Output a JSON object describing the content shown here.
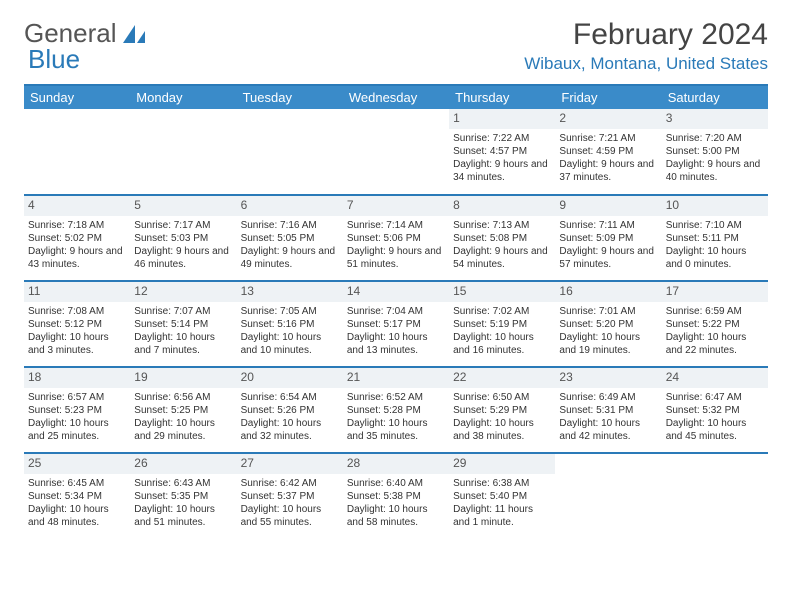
{
  "brand": {
    "part1": "General",
    "part2": "Blue"
  },
  "title": "February 2024",
  "location": "Wibaux, Montana, United States",
  "columns": [
    "Sunday",
    "Monday",
    "Tuesday",
    "Wednesday",
    "Thursday",
    "Friday",
    "Saturday"
  ],
  "colors": {
    "header_bg": "#3a8bc9",
    "accent": "#2a7ab8",
    "daynum_bg": "#eef2f5"
  },
  "weeks": [
    [
      null,
      null,
      null,
      null,
      {
        "n": "1",
        "sr": "7:22 AM",
        "ss": "4:57 PM",
        "dl": "9 hours and 34 minutes."
      },
      {
        "n": "2",
        "sr": "7:21 AM",
        "ss": "4:59 PM",
        "dl": "9 hours and 37 minutes."
      },
      {
        "n": "3",
        "sr": "7:20 AM",
        "ss": "5:00 PM",
        "dl": "9 hours and 40 minutes."
      }
    ],
    [
      {
        "n": "4",
        "sr": "7:18 AM",
        "ss": "5:02 PM",
        "dl": "9 hours and 43 minutes."
      },
      {
        "n": "5",
        "sr": "7:17 AM",
        "ss": "5:03 PM",
        "dl": "9 hours and 46 minutes."
      },
      {
        "n": "6",
        "sr": "7:16 AM",
        "ss": "5:05 PM",
        "dl": "9 hours and 49 minutes."
      },
      {
        "n": "7",
        "sr": "7:14 AM",
        "ss": "5:06 PM",
        "dl": "9 hours and 51 minutes."
      },
      {
        "n": "8",
        "sr": "7:13 AM",
        "ss": "5:08 PM",
        "dl": "9 hours and 54 minutes."
      },
      {
        "n": "9",
        "sr": "7:11 AM",
        "ss": "5:09 PM",
        "dl": "9 hours and 57 minutes."
      },
      {
        "n": "10",
        "sr": "7:10 AM",
        "ss": "5:11 PM",
        "dl": "10 hours and 0 minutes."
      }
    ],
    [
      {
        "n": "11",
        "sr": "7:08 AM",
        "ss": "5:12 PM",
        "dl": "10 hours and 3 minutes."
      },
      {
        "n": "12",
        "sr": "7:07 AM",
        "ss": "5:14 PM",
        "dl": "10 hours and 7 minutes."
      },
      {
        "n": "13",
        "sr": "7:05 AM",
        "ss": "5:16 PM",
        "dl": "10 hours and 10 minutes."
      },
      {
        "n": "14",
        "sr": "7:04 AM",
        "ss": "5:17 PM",
        "dl": "10 hours and 13 minutes."
      },
      {
        "n": "15",
        "sr": "7:02 AM",
        "ss": "5:19 PM",
        "dl": "10 hours and 16 minutes."
      },
      {
        "n": "16",
        "sr": "7:01 AM",
        "ss": "5:20 PM",
        "dl": "10 hours and 19 minutes."
      },
      {
        "n": "17",
        "sr": "6:59 AM",
        "ss": "5:22 PM",
        "dl": "10 hours and 22 minutes."
      }
    ],
    [
      {
        "n": "18",
        "sr": "6:57 AM",
        "ss": "5:23 PM",
        "dl": "10 hours and 25 minutes."
      },
      {
        "n": "19",
        "sr": "6:56 AM",
        "ss": "5:25 PM",
        "dl": "10 hours and 29 minutes."
      },
      {
        "n": "20",
        "sr": "6:54 AM",
        "ss": "5:26 PM",
        "dl": "10 hours and 32 minutes."
      },
      {
        "n": "21",
        "sr": "6:52 AM",
        "ss": "5:28 PM",
        "dl": "10 hours and 35 minutes."
      },
      {
        "n": "22",
        "sr": "6:50 AM",
        "ss": "5:29 PM",
        "dl": "10 hours and 38 minutes."
      },
      {
        "n": "23",
        "sr": "6:49 AM",
        "ss": "5:31 PM",
        "dl": "10 hours and 42 minutes."
      },
      {
        "n": "24",
        "sr": "6:47 AM",
        "ss": "5:32 PM",
        "dl": "10 hours and 45 minutes."
      }
    ],
    [
      {
        "n": "25",
        "sr": "6:45 AM",
        "ss": "5:34 PM",
        "dl": "10 hours and 48 minutes."
      },
      {
        "n": "26",
        "sr": "6:43 AM",
        "ss": "5:35 PM",
        "dl": "10 hours and 51 minutes."
      },
      {
        "n": "27",
        "sr": "6:42 AM",
        "ss": "5:37 PM",
        "dl": "10 hours and 55 minutes."
      },
      {
        "n": "28",
        "sr": "6:40 AM",
        "ss": "5:38 PM",
        "dl": "10 hours and 58 minutes."
      },
      {
        "n": "29",
        "sr": "6:38 AM",
        "ss": "5:40 PM",
        "dl": "11 hours and 1 minute."
      },
      null,
      null
    ]
  ],
  "labels": {
    "sunrise": "Sunrise:",
    "sunset": "Sunset:",
    "daylight": "Daylight:"
  }
}
